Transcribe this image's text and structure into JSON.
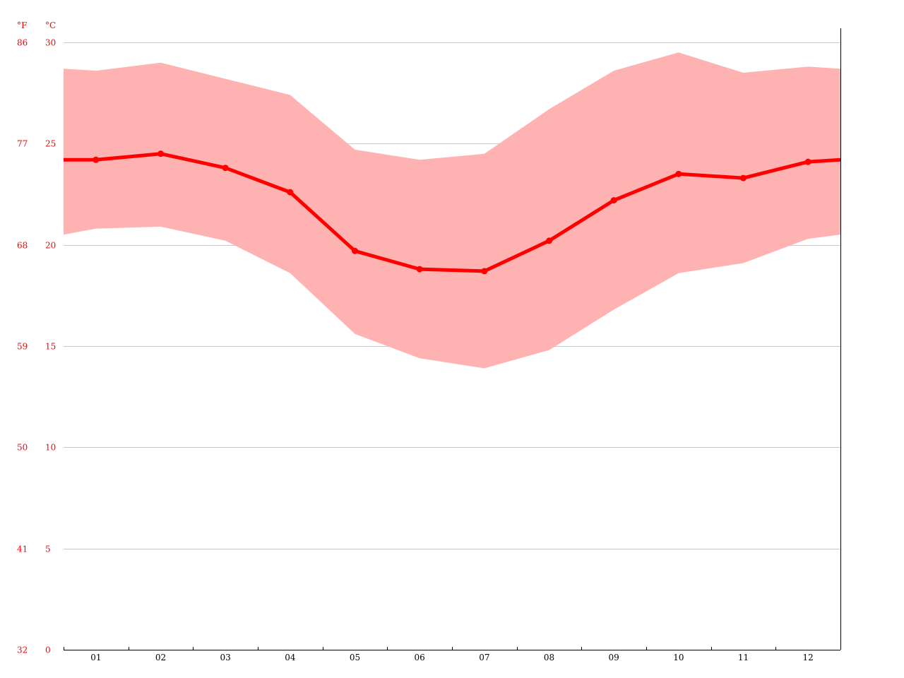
{
  "colors": {
    "line": "#ff0000",
    "band": "#ffb2b2",
    "grid": "#c8c8c8",
    "axis_text_temp": "#ff0000",
    "axis_text_month": "#000000"
  },
  "chart_data": {
    "type": "line",
    "units": {
      "fahrenheit": "°F",
      "celsius": "°C"
    },
    "categories": [
      "01",
      "02",
      "03",
      "04",
      "05",
      "06",
      "07",
      "08",
      "09",
      "10",
      "11",
      "12"
    ],
    "ylim": [
      0,
      30
    ],
    "yticks_celsius": [
      "0",
      "5",
      "10",
      "15",
      "20",
      "25",
      "30"
    ],
    "yticks_fahrenheit": [
      "32",
      "41",
      "50",
      "59",
      "68",
      "77",
      "86"
    ],
    "grid": true,
    "series": [
      {
        "values": [
          24.2,
          24.5,
          23.8,
          22.6,
          19.7,
          18.8,
          18.7,
          20.2,
          22.2,
          23.5,
          23.3,
          24.1
        ]
      },
      {
        "values": [
          28.6,
          29.0,
          28.2,
          27.4,
          24.7,
          24.2,
          24.5,
          26.7,
          28.6,
          29.5,
          28.5,
          28.8
        ]
      },
      {
        "values": [
          20.8,
          20.9,
          20.2,
          18.6,
          15.6,
          14.4,
          13.9,
          14.8,
          16.8,
          18.6,
          19.1,
          20.3
        ]
      }
    ],
    "edge_values": {
      "mean": 24.2,
      "max": 28.7,
      "min": 20.5
    }
  }
}
